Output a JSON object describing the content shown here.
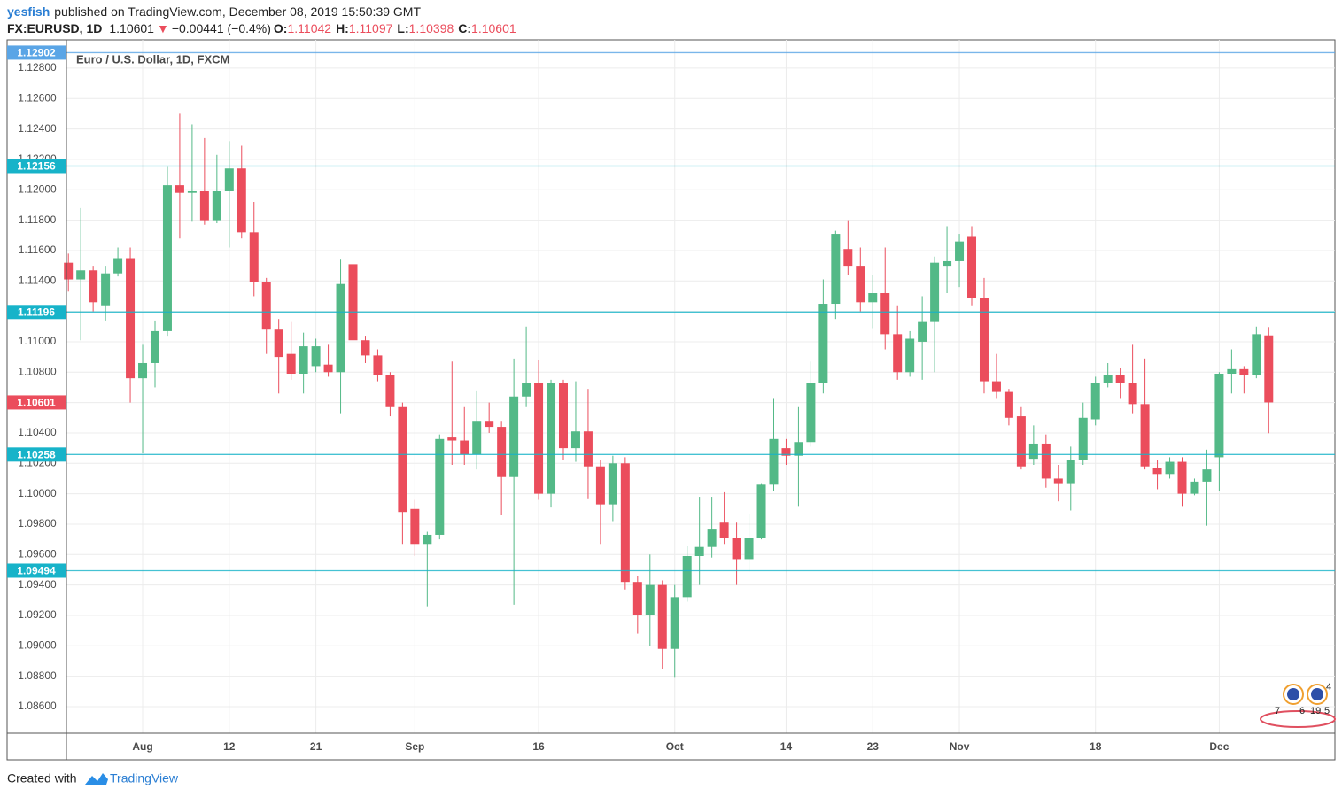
{
  "header": {
    "author": "yesfish",
    "published": "published on TradingView.com, December 08, 2019 15:50:39 GMT",
    "symbol": "FX:EURUSD, 1D",
    "last": "1.10601",
    "arrow": "▼",
    "change": "−0.00441 (−0.4%)",
    "ohlc": [
      {
        "label": "O:",
        "value": "1.11042"
      },
      {
        "label": "H:",
        "value": "1.11097"
      },
      {
        "label": "L:",
        "value": "1.10398"
      },
      {
        "label": "C:",
        "value": "1.10601"
      }
    ]
  },
  "chart_data": {
    "type": "candlestick",
    "legend": "Euro / U.S. Dollar, 1D, FXCM",
    "categories": [
      null,
      null,
      null,
      null,
      null,
      null,
      "Aug",
      null,
      null,
      null,
      null,
      null,
      null,
      "12",
      null,
      null,
      null,
      null,
      null,
      null,
      "21",
      null,
      null,
      null,
      null,
      null,
      null,
      null,
      "Sep",
      null,
      null,
      null,
      null,
      null,
      null,
      null,
      null,
      null,
      "16",
      null,
      null,
      null,
      null,
      null,
      null,
      null,
      null,
      null,
      null,
      "Oct",
      null,
      null,
      null,
      null,
      null,
      null,
      null,
      null,
      "14",
      null,
      null,
      null,
      null,
      null,
      null,
      "23",
      null,
      null,
      null,
      null,
      null,
      null,
      "Nov",
      null,
      null,
      null,
      null,
      null,
      null,
      null,
      null,
      null,
      null,
      "18",
      null,
      null,
      null,
      null,
      null,
      null,
      null,
      null,
      null,
      "Dec",
      null,
      null,
      null,
      null
    ],
    "open": [
      1.1152,
      1.1141,
      1.1147,
      1.1124,
      1.1145,
      1.1155,
      1.1076,
      1.1086,
      1.1107,
      1.1203,
      1.1198,
      1.1199,
      1.118,
      1.1199,
      1.1214,
      1.1172,
      1.1139,
      1.1108,
      1.1092,
      1.1079,
      1.1084,
      1.1085,
      1.108,
      1.1151,
      1.1101,
      1.1091,
      1.1078,
      1.1057,
      1.099,
      1.0967,
      1.0973,
      1.1037,
      1.1035,
      1.1026,
      1.1048,
      1.1044,
      1.1011,
      1.1064,
      1.1073,
      1.1,
      1.1073,
      1.103,
      1.1041,
      1.1018,
      1.0993,
      1.102,
      1.0942,
      1.092,
      1.094,
      1.0898,
      1.0932,
      1.0959,
      1.0965,
      1.0981,
      1.0971,
      1.0957,
      1.0971,
      1.1006,
      1.103,
      1.1025,
      1.1034,
      1.1073,
      1.1125,
      1.1161,
      1.115,
      1.1126,
      1.1132,
      1.1105,
      1.108,
      1.11,
      1.1113,
      1.115,
      1.1153,
      1.1169,
      1.1129,
      1.1074,
      1.1067,
      1.1051,
      1.1023,
      1.1033,
      1.101,
      1.1007,
      1.1022,
      1.1049,
      1.1073,
      1.1078,
      1.1073,
      1.1059,
      1.1017,
      1.1013,
      1.1021,
      1.1,
      1.1008,
      1.1024,
      1.1079,
      1.1082,
      1.1078,
      1.11042
    ],
    "high": [
      1.1158,
      1.1188,
      1.115,
      1.115,
      1.1162,
      1.1162,
      1.1098,
      1.1114,
      1.1215,
      1.125,
      1.1243,
      1.1234,
      1.1223,
      1.1232,
      1.1229,
      1.1192,
      1.1142,
      1.1115,
      1.1113,
      1.1106,
      1.1102,
      1.1098,
      1.1154,
      1.1165,
      1.1104,
      1.1095,
      1.108,
      1.106,
      1.0996,
      1.0975,
      1.1039,
      1.1087,
      1.1057,
      1.1068,
      1.106,
      1.1048,
      1.1089,
      1.111,
      1.1088,
      1.1075,
      1.1075,
      1.1074,
      1.1069,
      1.1022,
      1.1025,
      1.1024,
      1.0946,
      1.096,
      1.0943,
      1.094,
      1.0966,
      1.0998,
      1.0998,
      1.1001,
      1.0981,
      1.0987,
      1.1007,
      1.1063,
      1.1036,
      1.1057,
      1.1087,
      1.1141,
      1.1173,
      1.118,
      1.1162,
      1.1144,
      1.1162,
      1.1124,
      1.1107,
      1.113,
      1.1156,
      1.1176,
      1.1171,
      1.1176,
      1.1142,
      1.1092,
      1.1069,
      1.1057,
      1.1045,
      1.1039,
      1.1019,
      1.1031,
      1.106,
      1.1077,
      1.1086,
      1.1083,
      1.1098,
      1.1089,
      1.1022,
      1.1024,
      1.1024,
      1.101,
      1.1029,
      1.108,
      1.1095,
      1.1084,
      1.111,
      1.11097
    ],
    "low": [
      1.1133,
      1.1101,
      1.112,
      1.1114,
      1.1143,
      1.106,
      1.1027,
      1.107,
      1.1104,
      1.1168,
      1.1179,
      1.1177,
      1.1178,
      1.1162,
      1.1168,
      1.113,
      1.1092,
      1.1066,
      1.1075,
      1.1066,
      1.108,
      1.1077,
      1.1053,
      1.1095,
      1.1086,
      1.1074,
      1.1051,
      1.0967,
      1.0959,
      1.0926,
      1.097,
      1.1019,
      1.1019,
      1.1016,
      1.104,
      1.0986,
      1.0927,
      1.1057,
      1.0996,
      1.0991,
      1.1022,
      1.1021,
      1.0997,
      1.0967,
      1.0982,
      1.0937,
      1.0908,
      1.09,
      1.0885,
      1.0879,
      1.0929,
      1.094,
      1.0958,
      1.0967,
      1.094,
      1.0949,
      1.097,
      1.1002,
      1.1019,
      1.0992,
      1.1031,
      1.1066,
      1.1115,
      1.1144,
      1.112,
      1.1109,
      1.1095,
      1.1075,
      1.1077,
      1.1075,
      1.108,
      1.1132,
      1.1136,
      1.1124,
      1.1066,
      1.1063,
      1.1045,
      1.1016,
      1.1019,
      1.1004,
      1.0995,
      1.0989,
      1.1019,
      1.1045,
      1.107,
      1.1063,
      1.1053,
      1.1016,
      1.1003,
      1.101,
      1.0992,
      1.0999,
      1.0979,
      1.1002,
      1.1066,
      1.1066,
      1.1076,
      1.10398
    ],
    "close": [
      1.1141,
      1.1147,
      1.1126,
      1.1145,
      1.1155,
      1.1076,
      1.1086,
      1.1107,
      1.1203,
      1.1198,
      1.1199,
      1.118,
      1.1199,
      1.1214,
      1.1172,
      1.1139,
      1.1108,
      1.109,
      1.1079,
      1.1097,
      1.1097,
      1.108,
      1.1138,
      1.1101,
      1.1091,
      1.1078,
      1.1057,
      1.0988,
      1.0967,
      1.0973,
      1.1036,
      1.1035,
      1.1026,
      1.1048,
      1.1044,
      1.1011,
      1.1064,
      1.1073,
      1.1,
      1.1073,
      1.103,
      1.1041,
      1.1018,
      1.0993,
      1.102,
      1.0942,
      1.092,
      1.094,
      1.0898,
      1.0932,
      1.0959,
      1.0965,
      1.0977,
      1.0971,
      1.0957,
      1.0971,
      1.1006,
      1.1036,
      1.1025,
      1.1034,
      1.1073,
      1.1125,
      1.1171,
      1.115,
      1.1126,
      1.1132,
      1.1105,
      1.108,
      1.1102,
      1.1113,
      1.1152,
      1.1153,
      1.1166,
      1.1129,
      1.1074,
      1.1067,
      1.105,
      1.1018,
      1.1033,
      1.101,
      1.1007,
      1.1022,
      1.105,
      1.1073,
      1.1078,
      1.1073,
      1.1059,
      1.1018,
      1.1013,
      1.1021,
      1.1,
      1.1008,
      1.1016,
      1.1079,
      1.1082,
      1.1078,
      1.1105,
      1.10601
    ],
    "up_color": "#53b987",
    "down_color": "#eb4d5c",
    "ylim": [
      1.08425,
      1.12986
    ],
    "yticks": [
      {
        "value": 1.086,
        "label": "1.08600"
      },
      {
        "value": 1.088,
        "label": "1.08800"
      },
      {
        "value": 1.09,
        "label": "1.09000"
      },
      {
        "value": 1.092,
        "label": "1.09200"
      },
      {
        "value": 1.094,
        "label": "1.09400"
      },
      {
        "value": 1.096,
        "label": "1.09600"
      },
      {
        "value": 1.098,
        "label": "1.09800"
      },
      {
        "value": 1.1,
        "label": "1.10000"
      },
      {
        "value": 1.102,
        "label": "1.10200"
      },
      {
        "value": 1.104,
        "label": "1.10400"
      },
      {
        "value": 1.106,
        "label": "1.10600"
      },
      {
        "value": 1.108,
        "label": "1.10800"
      },
      {
        "value": 1.11,
        "label": "1.11000"
      },
      {
        "value": 1.112,
        "label": "1.11200"
      },
      {
        "value": 1.114,
        "label": "1.11400"
      },
      {
        "value": 1.116,
        "label": "1.11600"
      },
      {
        "value": 1.118,
        "label": "1.11800"
      },
      {
        "value": 1.12,
        "label": "1.12000"
      },
      {
        "value": 1.122,
        "label": "1.12200"
      },
      {
        "value": 1.124,
        "label": "1.12400"
      },
      {
        "value": 1.126,
        "label": "1.12600"
      },
      {
        "value": 1.128,
        "label": "1.12800"
      }
    ],
    "grid": true,
    "price_lines": [
      {
        "value": 1.12902,
        "label": "1.12902",
        "color": "#5aa5e6"
      },
      {
        "value": 1.12156,
        "label": "1.12156",
        "color": "#17b3c9"
      },
      {
        "value": 1.11196,
        "label": "1.11196",
        "color": "#17b3c9"
      },
      {
        "value": 1.10258,
        "label": "1.10258",
        "color": "#17b3c9"
      },
      {
        "value": 1.09494,
        "label": "1.09494",
        "color": "#17b3c9"
      }
    ],
    "last_price": {
      "value": 1.10601,
      "label": "1.10601",
      "color": "#eb4d5c"
    }
  },
  "events": [
    "4",
    "7",
    "6",
    "19",
    "5"
  ],
  "footer": {
    "created": "Created with",
    "brand": "TradingView"
  }
}
